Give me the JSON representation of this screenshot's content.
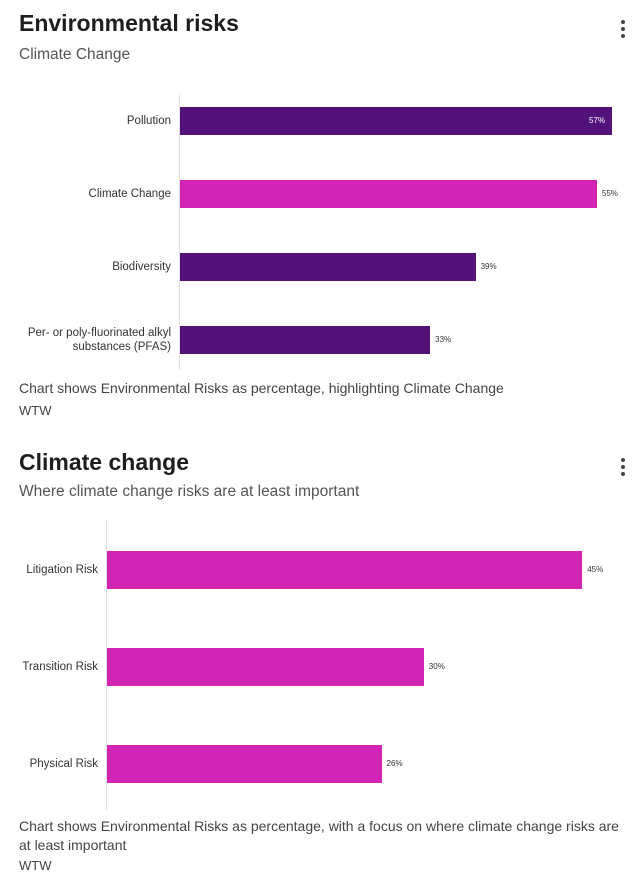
{
  "colors": {
    "base": "#52127a",
    "highlight": "#d224b5"
  },
  "chart_data": [
    {
      "type": "bar",
      "orientation": "horizontal",
      "title": "Environmental risks",
      "subtitle": "Climate Change",
      "categories": [
        "Pollution",
        "Climate Change",
        "Biodiversity",
        "Per- or poly-fluorinated alkyl substances (PFAS)"
      ],
      "values": [
        57,
        55,
        39,
        33
      ],
      "labels": [
        "57%",
        "55%",
        "39%",
        "33%"
      ],
      "highlight": [
        false,
        true,
        false,
        false
      ],
      "caption": "Chart shows Environmental Risks as percentage, highlighting Climate Change",
      "source": "WTW"
    },
    {
      "type": "bar",
      "orientation": "horizontal",
      "title": "Climate change",
      "subtitle": "Where climate change risks are at least important",
      "categories": [
        "Litigation Risk",
        "Transition Risk",
        "Physical Risk"
      ],
      "values": [
        45,
        30,
        26
      ],
      "labels": [
        "45%",
        "30%",
        "26%"
      ],
      "highlight": [
        true,
        true,
        true
      ],
      "caption": "Chart shows Environmental Risks as percentage, with a focus on where climate change risks are at least important",
      "source": "WTW"
    }
  ]
}
